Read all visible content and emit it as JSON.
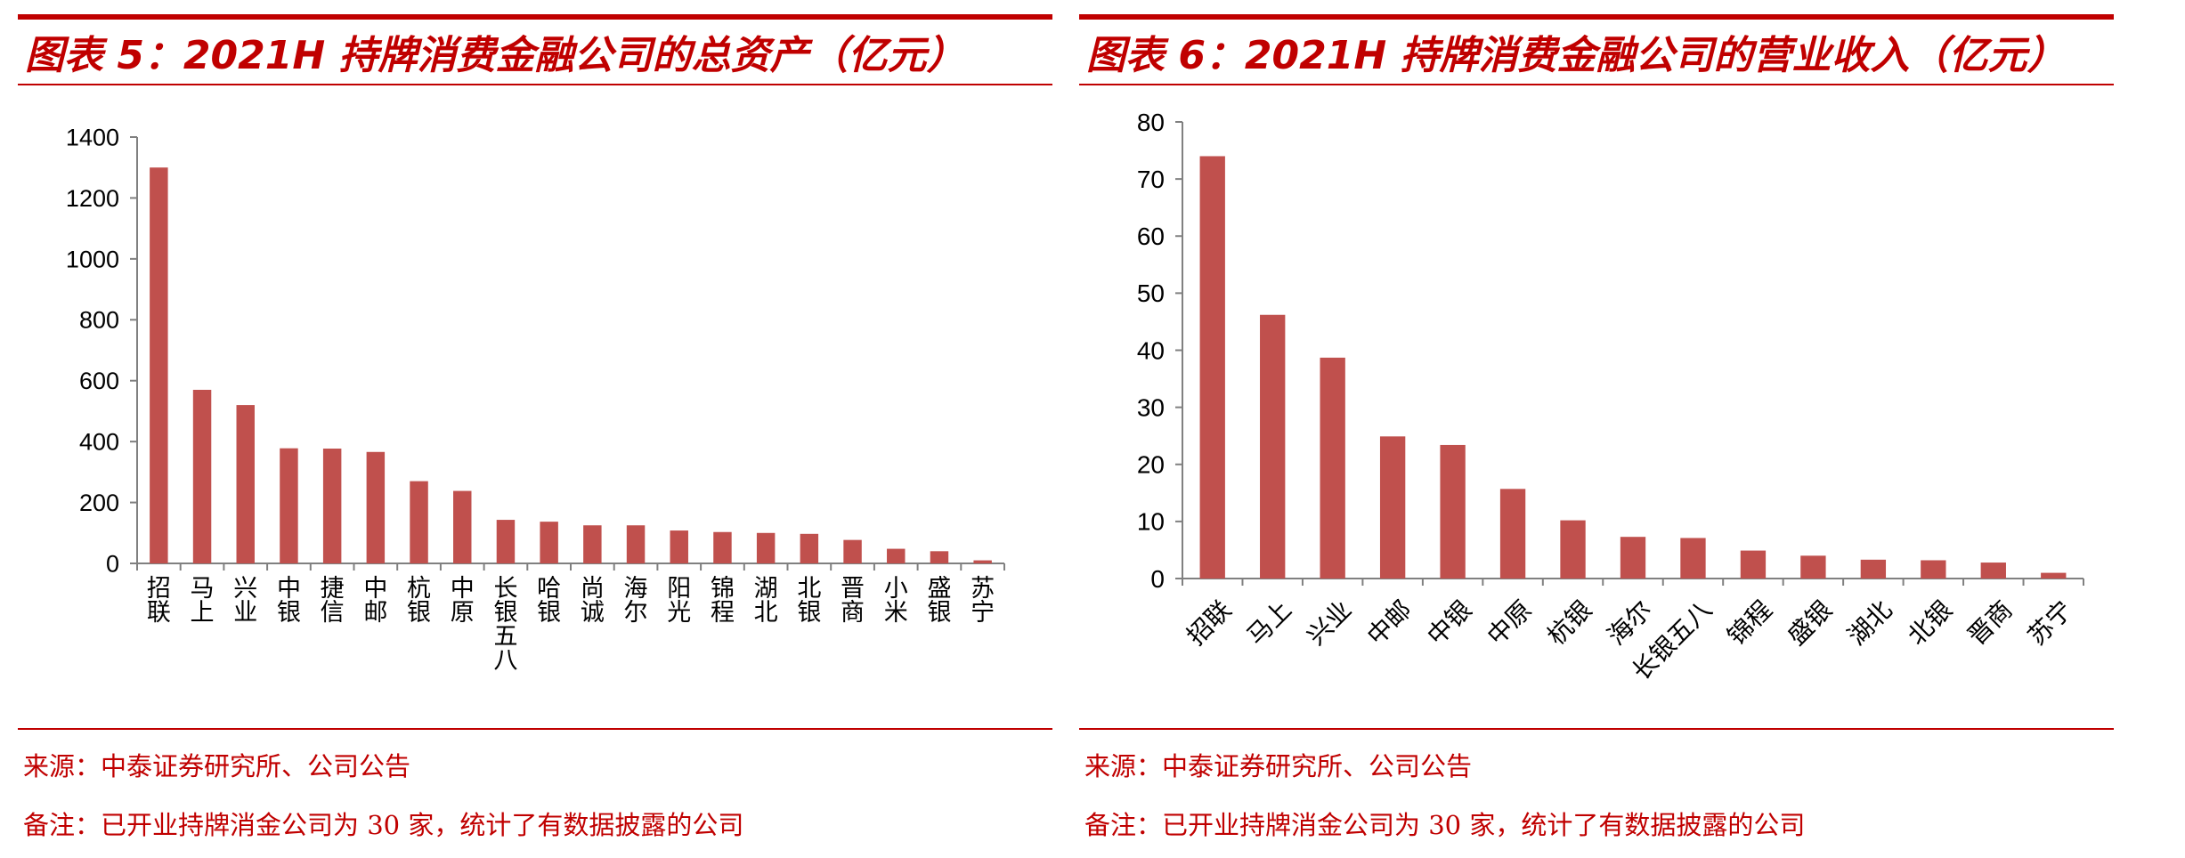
{
  "charts": [
    {
      "title": "图表 5：2021H 持牌消费金融公司的总资产（亿元）",
      "source": "来源：中泰证券研究所、公司公告",
      "remark": "备注：已开业持牌消金公司为 30 家，统计了有数据披露的公司"
    },
    {
      "title": "图表 6：2021H 持牌消费金融公司的营业收入（亿元）",
      "source": "来源：中泰证券研究所、公司公告",
      "remark": "备注：已开业持牌消金公司为 30 家，统计了有数据披露的公司"
    }
  ],
  "chart_data": [
    {
      "type": "bar",
      "title": "图表 5：2021H 持牌消费金融公司的总资产（亿元）",
      "categories": [
        "招联",
        "马上",
        "兴业",
        "中银",
        "捷信",
        "中邮",
        "杭银",
        "中原",
        "长银五八",
        "哈银",
        "尚诚",
        "海尔",
        "阳光",
        "锦程",
        "湖北",
        "北银",
        "晋商",
        "小米",
        "盛银",
        "苏宁"
      ],
      "values": [
        1300,
        570,
        520,
        378,
        377,
        366,
        270,
        238,
        143,
        137,
        125,
        125,
        108,
        103,
        100,
        97,
        77,
        48,
        40,
        10
      ],
      "ylim": [
        0,
        1400
      ],
      "yticks": [
        0,
        200,
        400,
        600,
        800,
        1000,
        1200,
        1400
      ],
      "xlabel": "",
      "ylabel": "",
      "grid": false,
      "label_rotation": "vertical",
      "bar_color": "#c0504d"
    },
    {
      "type": "bar",
      "title": "图表 6：2021H 持牌消费金融公司的营业收入（亿元）",
      "categories": [
        "招联",
        "马上",
        "兴业",
        "中邮",
        "中银",
        "中原",
        "杭银",
        "海尔",
        "长银五八",
        "锦程",
        "盛银",
        "湖北",
        "北银",
        "晋商",
        "苏宁"
      ],
      "values": [
        74,
        46.2,
        38.7,
        24.9,
        23.4,
        15.7,
        10.2,
        7.3,
        7.1,
        4.9,
        4.0,
        3.3,
        3.2,
        2.8,
        1.0
      ],
      "ylim": [
        0,
        80
      ],
      "yticks": [
        0,
        10,
        20,
        30,
        40,
        50,
        60,
        70,
        80
      ],
      "xlabel": "",
      "ylabel": "",
      "grid": false,
      "label_rotation": "diagonal",
      "bar_color": "#c0504d"
    }
  ]
}
